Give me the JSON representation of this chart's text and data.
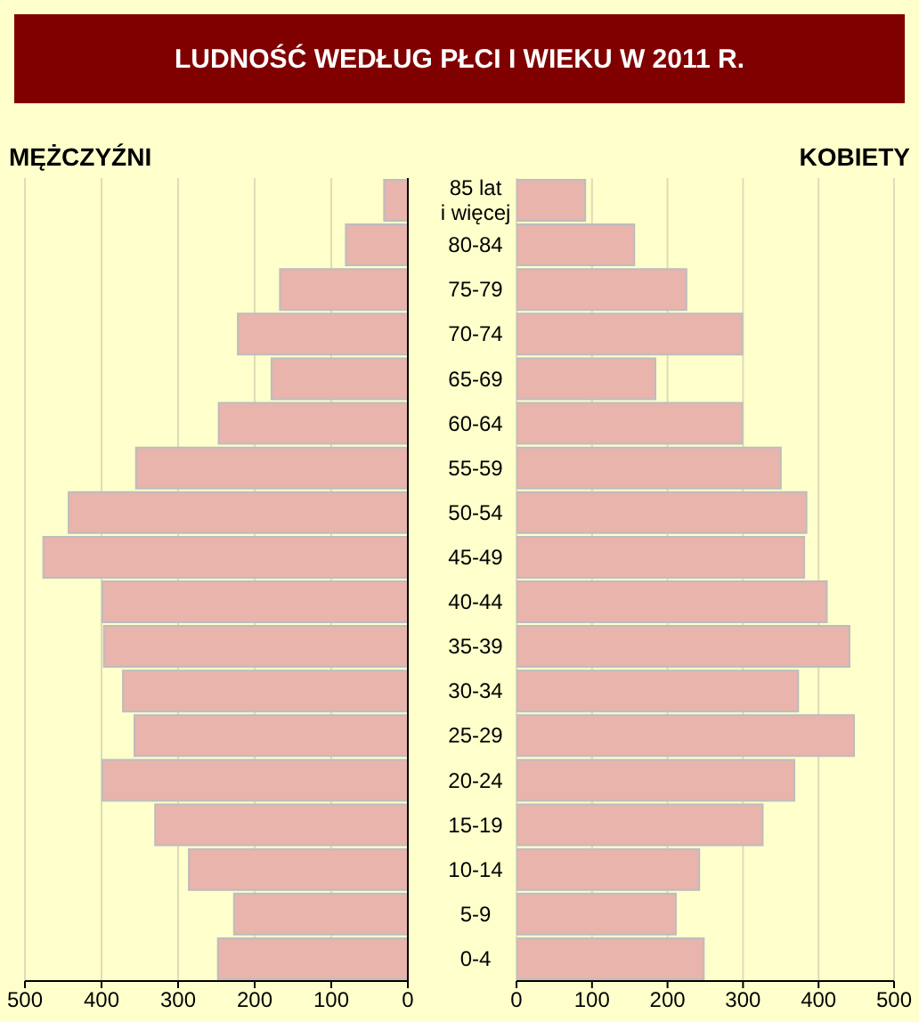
{
  "chart_data": [
    {
      "type": "bar",
      "orientation": "horizontal",
      "title": "LUDNOŚĆ WEDŁUG PŁCI I WIEKU W 2011 R.",
      "categories": [
        "85 lat i więcej",
        "80-84",
        "75-79",
        "70-74",
        "65-69",
        "60-64",
        "55-59",
        "50-54",
        "45-49",
        "40-44",
        "35-39",
        "30-34",
        "25-29",
        "20-24",
        "15-19",
        "10-14",
        "5-9",
        "0-4"
      ],
      "series": [
        {
          "name": "MĘŻCZYŹNI",
          "color": "#e8b4ac",
          "values": [
            31,
            81,
            167,
            222,
            178,
            247,
            355,
            443,
            476,
            399,
            397,
            372,
            357,
            399,
            330,
            286,
            227,
            248
          ]
        }
      ],
      "xlim": [
        500,
        0
      ],
      "xticks": [
        500,
        400,
        300,
        200,
        100,
        0
      ],
      "grid": "x"
    },
    {
      "type": "bar",
      "orientation": "horizontal",
      "categories": [
        null,
        null,
        null,
        null,
        null,
        null,
        null,
        null,
        null,
        null,
        null,
        null,
        null,
        null,
        null,
        null,
        null,
        null
      ],
      "series": [
        {
          "name": "KOBIETY",
          "color": "#e8b4ac",
          "values": [
            91,
            156,
            225,
            299,
            184,
            299,
            350,
            384,
            381,
            411,
            441,
            373,
            447,
            368,
            326,
            242,
            211,
            248
          ]
        }
      ],
      "xlim": [
        0,
        500
      ],
      "xticks": [
        0,
        100,
        200,
        300,
        400,
        500
      ],
      "grid": "x",
      "tick_labels": "x"
    }
  ]
}
